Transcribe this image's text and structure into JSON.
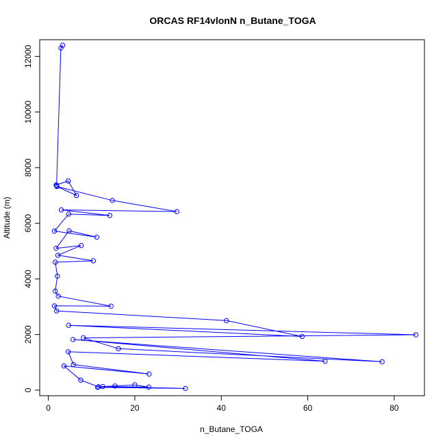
{
  "chart_data": {
    "type": "line",
    "title": "ORCAS RF14vlonN n_Butane_TOGA",
    "xlabel": "n_Butane_TOGA",
    "ylabel": "Altitude (m)",
    "xlim": [
      -2,
      87
    ],
    "ylim": [
      -200,
      12600
    ],
    "xticks": [
      0,
      20,
      40,
      60,
      80
    ],
    "yticks": [
      0,
      2000,
      4000,
      6000,
      8000,
      10000,
      12000
    ],
    "series_color": "#0000ff",
    "series": [
      {
        "x": [
          3.3,
          2.9,
          1.9,
          1.8,
          4.6,
          6.5,
          2.0,
          14.8,
          29.7,
          3.0,
          14.2,
          4.7,
          1.4,
          11.2,
          4.8,
          1.8,
          7.6,
          2.2,
          10.4,
          1.6,
          2.1,
          1.6,
          2.3,
          14.5,
          1.4,
          1.9,
          41.2,
          58.7,
          4.7,
          85.0,
          8.1,
          16.2,
          77.2,
          5.7,
          64.0,
          4.6,
          5.8,
          23.3,
          3.6,
          7.5,
          11.6,
          15.4,
          20.0,
          23.2,
          12.6,
          31.7,
          11.4
        ],
        "y": [
          12400,
          12300,
          7350,
          7380,
          7520,
          7000,
          7320,
          6820,
          6420,
          6480,
          6280,
          6330,
          5720,
          5500,
          5730,
          5100,
          5200,
          4850,
          4650,
          4600,
          4100,
          3560,
          3380,
          3020,
          3030,
          2850,
          2500,
          1930,
          2330,
          1990,
          1880,
          1490,
          1020,
          1820,
          1040,
          1380,
          920,
          580,
          870,
          360,
          120,
          150,
          190,
          110,
          130,
          60,
          100
        ]
      }
    ]
  }
}
